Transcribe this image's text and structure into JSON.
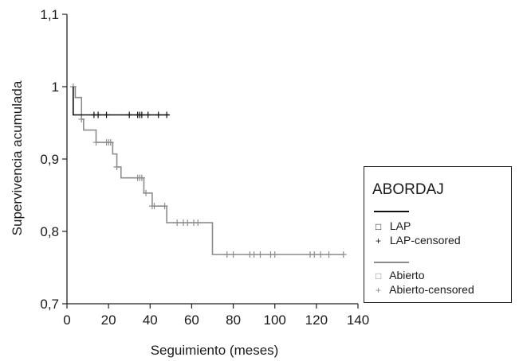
{
  "chart_data": {
    "type": "line",
    "step": true,
    "xlabel": "Seguimiento (meses)",
    "ylabel": "Supervivencia acumulada",
    "xlim": [
      0,
      140
    ],
    "ylim": [
      0.7,
      1.1
    ],
    "xticks": [
      "0",
      "20",
      "40",
      "60",
      "80",
      "100",
      "120",
      "140"
    ],
    "yticks": [
      "0,7",
      "0,8",
      "0,9",
      "1",
      "1,1"
    ],
    "xtick_values": [
      0,
      20,
      40,
      60,
      80,
      100,
      120,
      140
    ],
    "ytick_values": [
      0.7,
      0.8,
      0.9,
      1.0,
      1.1
    ],
    "grid": false,
    "legend_position": "right",
    "series": [
      {
        "name": "LAP",
        "color": "#111111",
        "steps": [
          [
            3,
            1.0
          ],
          [
            3,
            0.961
          ],
          [
            49,
            0.961
          ]
        ],
        "censored": [
          13,
          15,
          19,
          30,
          34,
          35,
          36,
          39,
          44,
          48
        ]
      },
      {
        "name": "Abierto",
        "color": "#8c8c8c",
        "steps": [
          [
            3,
            1.0
          ],
          [
            4,
            0.985
          ],
          [
            7,
            0.955
          ],
          [
            8,
            0.94
          ],
          [
            14,
            0.923
          ],
          [
            22,
            0.907
          ],
          [
            24,
            0.889
          ],
          [
            26,
            0.874
          ],
          [
            37,
            0.853
          ],
          [
            41,
            0.835
          ],
          [
            48,
            0.812
          ],
          [
            70,
            0.768
          ],
          [
            133,
            0.768
          ]
        ],
        "censored": [
          3,
          7,
          14,
          19,
          20,
          21,
          24,
          34,
          35,
          36,
          38,
          41,
          42,
          47,
          53,
          56,
          58,
          61,
          63,
          77,
          80,
          88,
          90,
          93,
          98,
          100,
          117,
          119,
          122,
          126,
          133
        ]
      }
    ]
  },
  "legend": {
    "title": "ABORDAJ",
    "items": [
      {
        "symbol": "□",
        "label": "LAP"
      },
      {
        "symbol": "+",
        "label": "LAP-censored"
      },
      {
        "symbol": "□",
        "label": "Abierto"
      },
      {
        "symbol": "+",
        "label": "Abierto-censored"
      }
    ]
  }
}
